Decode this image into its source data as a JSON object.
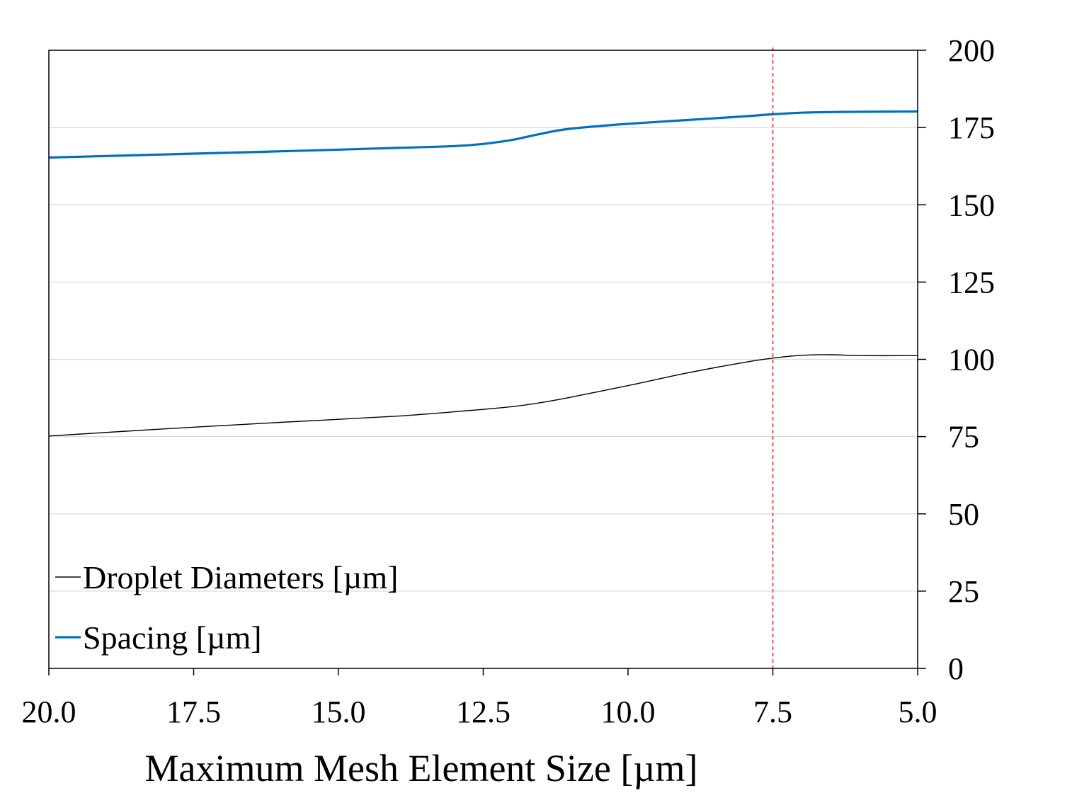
{
  "chart_data": {
    "type": "line",
    "title": "",
    "xlabel": "Maximum Mesh Element Size [µm]",
    "ylabel": "",
    "x_reversed": true,
    "xlim": [
      20.0,
      5.0
    ],
    "ylim": [
      0,
      200
    ],
    "x_ticks": [
      20.0,
      17.5,
      15.0,
      12.5,
      10.0,
      7.5,
      5.0
    ],
    "x_tick_labels": [
      "20.0",
      "17.5",
      "15.0",
      "12.5",
      "10.0",
      "7.5",
      "5.0"
    ],
    "y_ticks": [
      0,
      25,
      50,
      75,
      100,
      125,
      150,
      175,
      200
    ],
    "y_tick_labels": [
      "0",
      "25",
      "50",
      "75",
      "100",
      "125",
      "150",
      "175",
      "200"
    ],
    "y_axis_side": "right",
    "grid": {
      "horizontal": true,
      "vertical": false,
      "color": "#d9d9d9"
    },
    "reference_line": {
      "x": 7.5,
      "style": "dashed",
      "color": "#e8473f"
    },
    "legend": {
      "position": "bottom-left"
    },
    "series": [
      {
        "name": "Droplet Diameters [µm]",
        "color": "#000000",
        "line_width": "thin",
        "points": [
          [
            20.0,
            75.2
          ],
          [
            18.0,
            77.5
          ],
          [
            16.0,
            79.6
          ],
          [
            14.0,
            81.6
          ],
          [
            12.7,
            83.5
          ],
          [
            12.0,
            84.7
          ],
          [
            11.5,
            86.0
          ],
          [
            11.0,
            87.7
          ],
          [
            10.0,
            91.5
          ],
          [
            9.0,
            95.5
          ],
          [
            8.0,
            99.0
          ],
          [
            7.5,
            100.4
          ],
          [
            7.0,
            101.3
          ],
          [
            6.5,
            101.5
          ],
          [
            6.0,
            101.2
          ],
          [
            5.0,
            101.2
          ]
        ]
      },
      {
        "name": "Spacing [µm]",
        "color": "#0070c0",
        "line_width": "thick",
        "points": [
          [
            20.0,
            165.3
          ],
          [
            18.0,
            166.3
          ],
          [
            16.0,
            167.3
          ],
          [
            14.0,
            168.4
          ],
          [
            13.0,
            169.0
          ],
          [
            12.5,
            169.7
          ],
          [
            12.0,
            171.0
          ],
          [
            11.5,
            173.0
          ],
          [
            11.0,
            174.6
          ],
          [
            10.0,
            176.2
          ],
          [
            9.0,
            177.4
          ],
          [
            8.0,
            178.6
          ],
          [
            7.5,
            179.3
          ],
          [
            7.0,
            179.8
          ],
          [
            6.5,
            180.0
          ],
          [
            6.0,
            180.1
          ],
          [
            5.0,
            180.2
          ]
        ]
      }
    ]
  }
}
